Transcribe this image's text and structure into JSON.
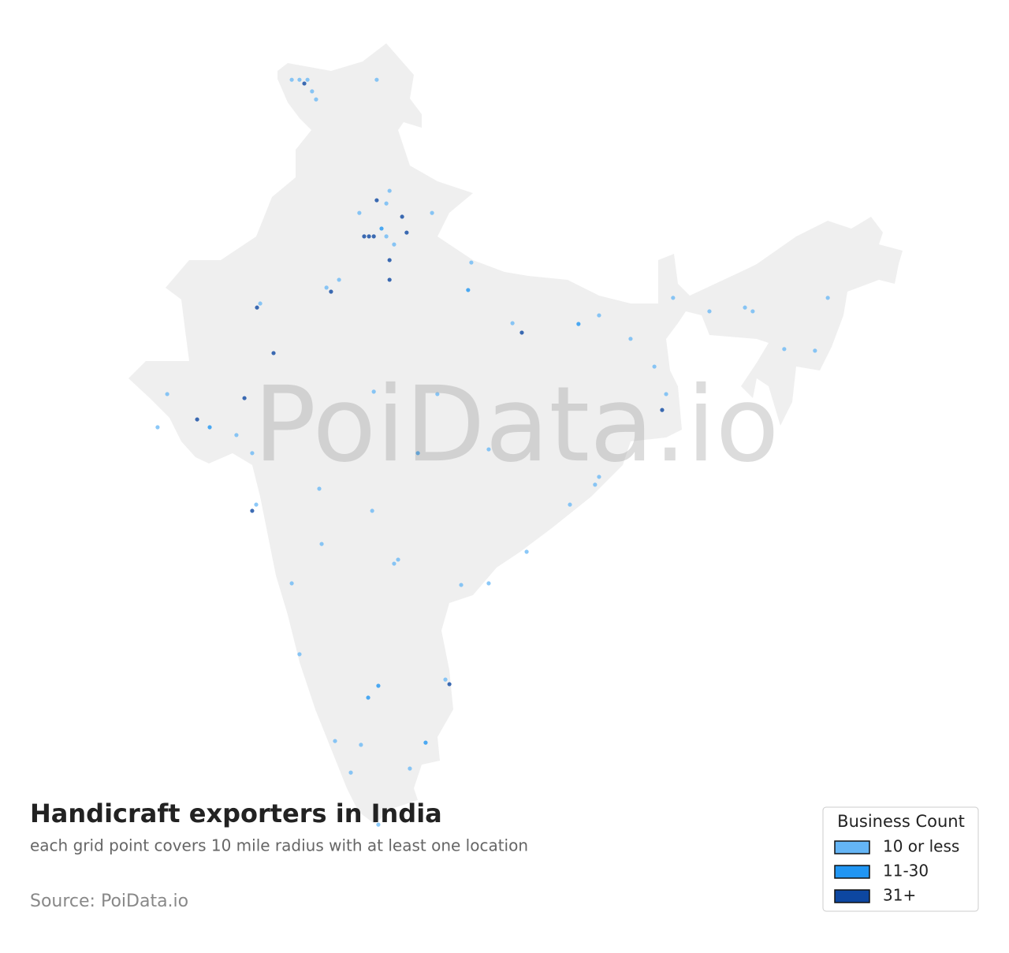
{
  "title": "Handicraft exporters in India",
  "subtitle": "each grid point covers 10 mile radius with at least one location",
  "source": "Source: PoiData.io",
  "watermark": "PoiData.io",
  "legend": {
    "title": "Business Count",
    "entries": [
      {
        "label": "10 or less",
        "color": "#64b5f6"
      },
      {
        "label": "11-30",
        "color": "#2196f3"
      },
      {
        "label": "31+",
        "color": "#0d47a1"
      }
    ]
  },
  "points": [
    [
      74.05,
      35.65,
      0
    ],
    [
      74.34,
      35.65,
      0
    ],
    [
      74.52,
      35.51,
      2
    ],
    [
      74.64,
      35.65,
      0
    ],
    [
      74.81,
      35.22,
      0
    ],
    [
      74.96,
      34.92,
      0
    ],
    [
      77.23,
      35.65,
      0
    ],
    [
      76.76,
      29.84,
      2
    ],
    [
      76.94,
      29.84,
      2
    ],
    [
      77.12,
      29.84,
      2
    ],
    [
      77.41,
      30.13,
      1
    ],
    [
      77.59,
      29.84,
      0
    ],
    [
      77.23,
      31.18,
      2
    ],
    [
      77.59,
      31.06,
      0
    ],
    [
      77.71,
      31.53,
      0
    ],
    [
      78.18,
      30.57,
      2
    ],
    [
      78.35,
      29.98,
      2
    ],
    [
      77.71,
      28.96,
      2
    ],
    [
      77.71,
      28.23,
      2
    ],
    [
      77.88,
      29.54,
      0
    ],
    [
      76.58,
      30.71,
      0
    ],
    [
      79.3,
      30.71,
      0
    ],
    [
      75.52,
      27.79,
      2
    ],
    [
      75.35,
      27.94,
      0
    ],
    [
      75.82,
      28.23,
      0
    ],
    [
      72.75,
      27.2,
      2
    ],
    [
      72.87,
      27.35,
      0
    ],
    [
      73.37,
      25.51,
      2
    ],
    [
      72.28,
      23.84,
      2
    ],
    [
      69.39,
      23.99,
      0
    ],
    [
      69.03,
      22.76,
      0
    ],
    [
      70.98,
      22.76,
      1
    ],
    [
      70.51,
      23.05,
      2
    ],
    [
      72.57,
      19.66,
      2
    ],
    [
      72.72,
      19.89,
      0
    ],
    [
      71.98,
      22.47,
      0
    ],
    [
      80.65,
      27.85,
      1
    ],
    [
      80.77,
      28.87,
      0
    ],
    [
      82.66,
      26.27,
      2
    ],
    [
      84.78,
      26.59,
      1
    ],
    [
      85.55,
      26.91,
      0
    ],
    [
      82.31,
      26.62,
      0
    ],
    [
      86.73,
      26.04,
      0
    ],
    [
      87.91,
      23.4,
      2
    ],
    [
      88.06,
      23.99,
      0
    ],
    [
      87.62,
      25.01,
      0
    ],
    [
      85.55,
      20.92,
      0
    ],
    [
      85.4,
      20.63,
      0
    ],
    [
      81.42,
      21.94,
      0
    ],
    [
      78.77,
      21.8,
      1
    ],
    [
      77.12,
      24.08,
      0
    ],
    [
      79.5,
      23.99,
      0
    ],
    [
      91.3,
      27.06,
      0
    ],
    [
      91.01,
      27.2,
      0
    ],
    [
      94.11,
      27.56,
      0
    ],
    [
      93.63,
      25.6,
      0
    ],
    [
      92.48,
      25.66,
      0
    ],
    [
      89.68,
      27.06,
      0
    ],
    [
      88.32,
      27.56,
      0
    ],
    [
      78.03,
      17.85,
      0
    ],
    [
      77.88,
      17.7,
      0
    ],
    [
      81.42,
      16.97,
      0
    ],
    [
      80.39,
      16.91,
      0
    ],
    [
      77.29,
      13.17,
      1
    ],
    [
      79.95,
      13.23,
      2
    ],
    [
      79.8,
      13.4,
      0
    ],
    [
      76.91,
      12.73,
      1
    ],
    [
      79.06,
      11.06,
      1
    ],
    [
      78.47,
      10.1,
      0
    ],
    [
      77.29,
      8.02,
      0
    ],
    [
      76.26,
      9.95,
      0
    ],
    [
      76.64,
      10.98,
      0
    ],
    [
      75.67,
      11.12,
      0
    ],
    [
      74.34,
      14.34,
      0
    ],
    [
      74.05,
      16.97,
      0
    ],
    [
      75.17,
      18.43,
      0
    ],
    [
      77.06,
      19.66,
      0
    ],
    [
      82.84,
      18.14,
      0
    ],
    [
      75.08,
      20.48,
      0
    ],
    [
      84.46,
      19.89,
      0
    ],
    [
      72.57,
      21.8,
      0
    ]
  ]
}
